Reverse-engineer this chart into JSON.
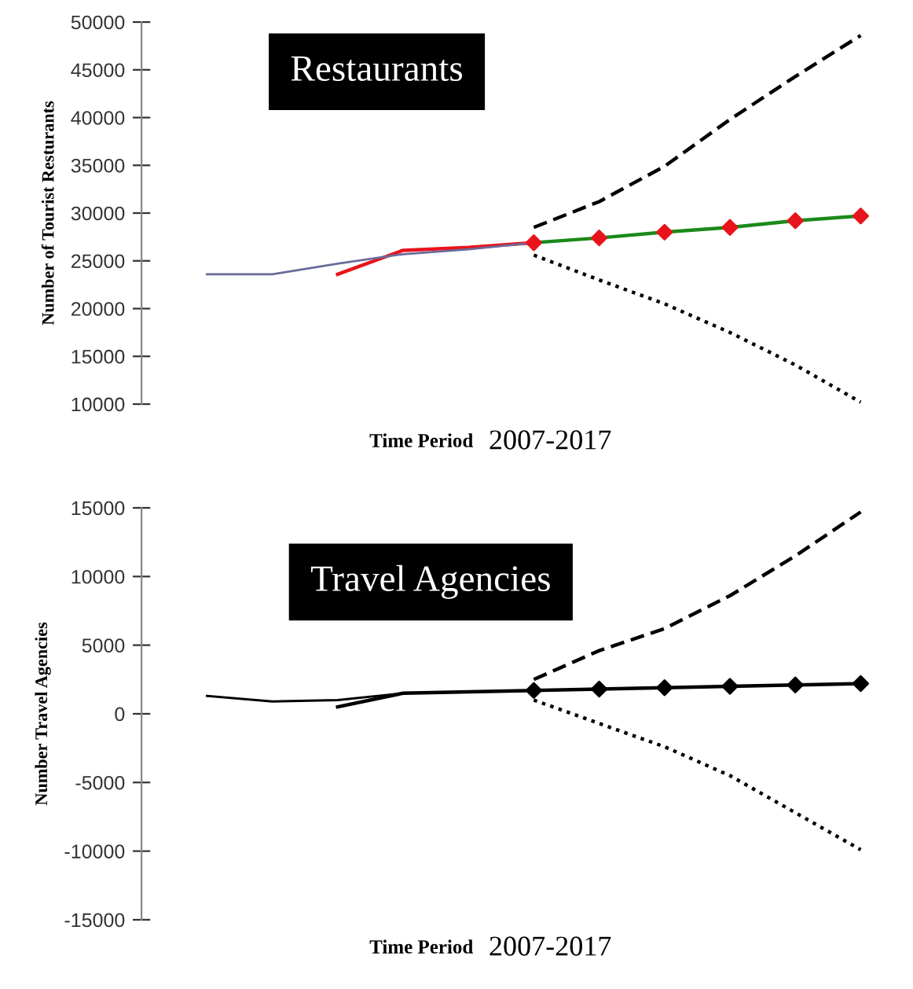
{
  "chart_data": [
    {
      "type": "line",
      "title": "Restaurants",
      "xlabel": "Time Period",
      "ylabel": "Number of Tourist Resturants",
      "annotations": [
        "2007-2017"
      ],
      "categories": [
        null,
        null,
        null,
        null,
        null,
        null,
        null,
        null,
        null,
        null,
        null
      ],
      "ylim": [
        10000,
        50000
      ],
      "yticks": [
        10000,
        15000,
        20000,
        25000,
        30000,
        35000,
        40000,
        45000,
        50000
      ],
      "tick_labels": "y",
      "grid": false,
      "legend": false,
      "series": [
        {
          "color": "#6b6b9b",
          "line_style": "solid",
          "values": [
            23600,
            23600,
            24700,
            25700,
            26200,
            26900,
            null,
            null,
            null,
            null,
            null
          ]
        },
        {
          "color": "#e8141c",
          "line_style": "solid",
          "values": [
            null,
            null,
            23600,
            26100,
            26400,
            26900,
            null,
            null,
            null,
            null,
            null
          ]
        },
        {
          "color": "#1a8a1a",
          "line_style": "solid",
          "marker": "diamond",
          "colors": [
            null,
            null,
            null,
            null,
            null,
            "#e8141c",
            "#e8141c",
            "#e8141c",
            "#e8141c",
            "#e8141c",
            "#e8141c"
          ],
          "values": [
            null,
            null,
            null,
            null,
            null,
            26900,
            27400,
            28000,
            28500,
            29200,
            29700
          ]
        },
        {
          "color": "#000000",
          "line_style": "dashed",
          "values": [
            null,
            null,
            null,
            null,
            null,
            28500,
            31200,
            34900,
            39800,
            44300,
            48600
          ]
        },
        {
          "color": "#000000",
          "line_style": "dotted",
          "values": [
            null,
            null,
            null,
            null,
            null,
            25600,
            23000,
            20500,
            17500,
            14100,
            10200
          ]
        }
      ]
    },
    {
      "type": "line",
      "title": "Travel Agencies",
      "xlabel": "Time Period",
      "ylabel": "Number Travel Agencies",
      "annotations": [
        "2007-2017"
      ],
      "categories": [
        null,
        null,
        null,
        null,
        null,
        null,
        null,
        null,
        null,
        null,
        null
      ],
      "ylim": [
        -15000,
        15000
      ],
      "yticks": [
        {
          "value": -15000,
          "label": "-15000"
        },
        {
          "value": -10000,
          "label": "-10000"
        },
        {
          "value": -5000,
          "label": "-5000"
        },
        0,
        5000,
        10000,
        15000
      ],
      "tick_labels": "y",
      "grid": false,
      "legend": false,
      "series": [
        {
          "color": "#000000",
          "line_style": "solid",
          "values": [
            1300,
            900,
            1000,
            1500,
            1600,
            1700,
            null,
            null,
            null,
            null,
            null
          ]
        },
        {
          "color": "#000000",
          "line_style": "solid",
          "values": [
            null,
            null,
            500,
            1500,
            1600,
            1700,
            null,
            null,
            null,
            null,
            null
          ]
        },
        {
          "color": "#000000",
          "line_style": "solid",
          "marker": "diamond",
          "values": [
            null,
            null,
            null,
            null,
            null,
            1700,
            1800,
            1900,
            2000,
            2100,
            2200
          ]
        },
        {
          "color": "#000000",
          "line_style": "dashed",
          "values": [
            null,
            null,
            null,
            null,
            null,
            2500,
            4600,
            6200,
            8600,
            11500,
            14700
          ]
        },
        {
          "color": "#000000",
          "line_style": "dotted",
          "values": [
            null,
            null,
            null,
            null,
            null,
            1000,
            -700,
            -2400,
            -4500,
            -7200,
            -9900
          ]
        }
      ]
    }
  ]
}
